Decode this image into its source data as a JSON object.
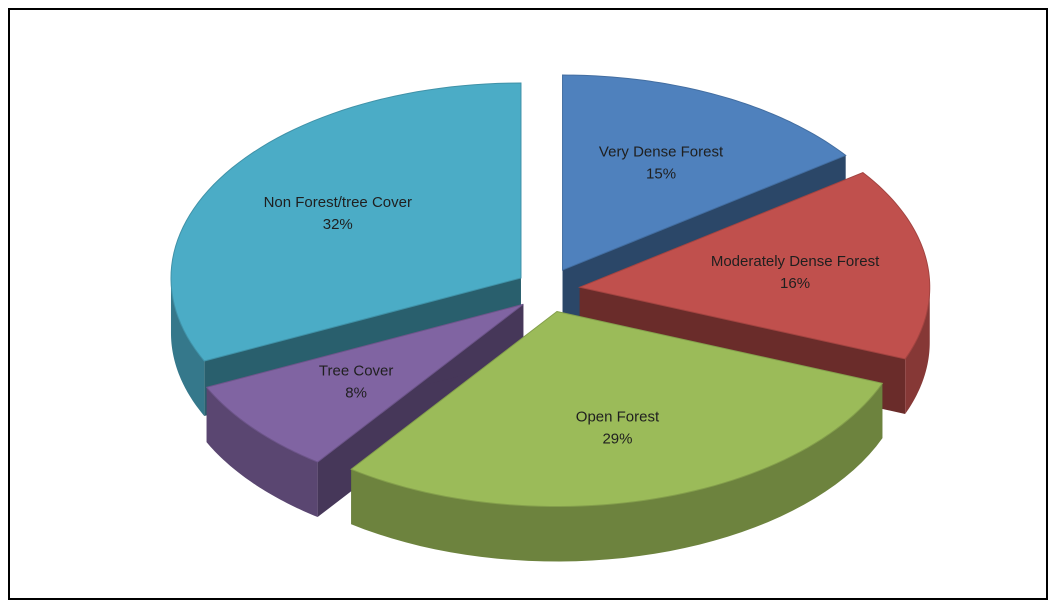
{
  "chart_data": {
    "type": "pie",
    "categories": [
      "Very Dense Forest",
      "Moderately Dense Forest",
      "Open Forest",
      "Tree Cover",
      "Non Forest/tree Cover"
    ],
    "values": [
      15,
      16,
      29,
      8,
      32
    ],
    "value_labels": [
      "15%",
      "16%",
      "29%",
      "8%",
      "32%"
    ],
    "colors": [
      "#4f81bd",
      "#c0504d",
      "#9bbb59",
      "#8064a2",
      "#4bacc6"
    ]
  }
}
